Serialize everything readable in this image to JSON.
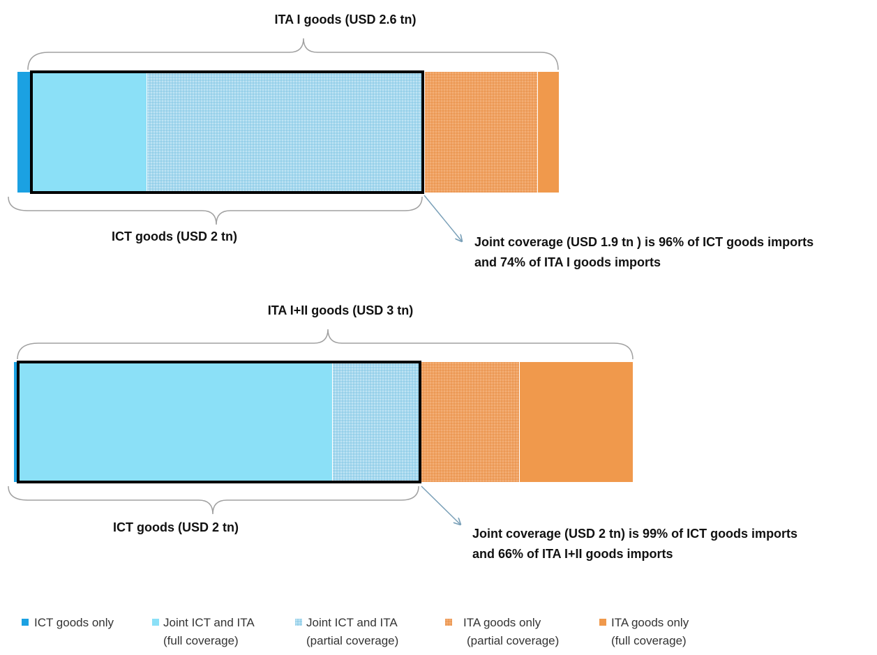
{
  "panels": [
    {
      "top_label": "ITA I goods (USD 2.6 tn)",
      "bottom_label": "ICT goods (USD 2 tn)",
      "note_line1": "Joint coverage (USD 1.9 tn ) is 96% of ICT goods imports",
      "note_line2": "and 74% of ITA I goods imports"
    },
    {
      "top_label": "ITA I+II goods (USD 3 tn)",
      "bottom_label": "ICT goods (USD 2 tn)",
      "note_line1": "Joint coverage (USD 2  tn) is 99% of ICT goods imports",
      "note_line2": "and 66% of ITA I+II goods imports"
    }
  ],
  "legend": [
    {
      "line1": "ICT goods only",
      "line2": "",
      "color": "#1ba1e2",
      "pattern": "solid"
    },
    {
      "line1": "Joint ICT and ITA",
      "line2": "(full coverage)",
      "color": "#8be0f7",
      "pattern": "solid"
    },
    {
      "line1": "Joint ICT and ITA",
      "line2": "(partial coverage)",
      "color": "#a9d6ea",
      "pattern": "dotted"
    },
    {
      "line1": "ITA goods only",
      "line2": "(partial coverage)",
      "color": "#f0a060",
      "pattern": "dotted"
    },
    {
      "line1": "ITA goods only",
      "line2": "(full coverage)",
      "color": "#f0994c",
      "pattern": "solid"
    }
  ],
  "colors": {
    "ict_only": "#1ba1e2",
    "joint_full": "#8be0f7",
    "joint_partial": "#a9d6ea",
    "ita_partial": "#f0a060",
    "ita_full": "#f0994c",
    "brace": "#a0a0a0",
    "arrow": "#7aa0b8",
    "outline": "#000000"
  }
}
